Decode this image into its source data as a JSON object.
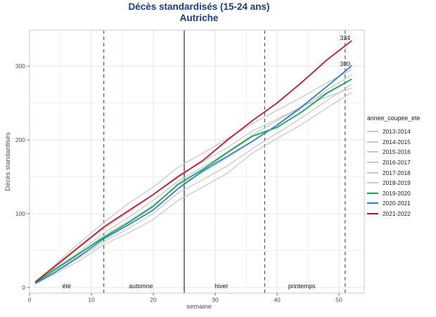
{
  "title": {
    "line1": "Décès standardisés (15-24 ans)",
    "line2": "Autriche",
    "color": "#123d8c"
  },
  "legend": {
    "title": "annee_coupee_ete",
    "position": "right"
  },
  "colors": {
    "title": "#123d8c",
    "gray_series": "#c9c9c9",
    "green_series": "#10a850",
    "blue_series": "#2b7fd9",
    "red_series": "#c4172c",
    "axis_text": "#4d4d4d",
    "grid_major": "#e4e4e4",
    "grid_minor": "#f1f1f1",
    "panel_border": "#c9c9c9",
    "divider_dashed": "#5a5a5a",
    "divider_solid": "#2b2b2b",
    "annotation_text": "#1a1a1a"
  },
  "chart_data": {
    "type": "line",
    "title": "Décès standardisés (15-24 ans) — Autriche",
    "xlabel": "semaine",
    "ylabel": "Décès standardisés",
    "xlim": [
      0,
      54
    ],
    "ylim": [
      -9,
      350
    ],
    "x_ticks": [
      0,
      10,
      20,
      30,
      40,
      50
    ],
    "y_ticks": [
      0,
      100,
      200,
      300
    ],
    "grid": "major+minor",
    "legend_position": "right",
    "x": [
      1,
      4,
      8,
      12,
      16,
      20,
      24,
      28,
      32,
      36,
      40,
      44,
      48,
      52
    ],
    "series": [
      {
        "name": "2013-2014",
        "color": "#c9c9c9",
        "width": 1.3,
        "values": [
          5,
          20,
          40,
          62,
          80,
          100,
          128,
          146,
          165,
          188,
          209,
          230,
          253,
          275
        ]
      },
      {
        "name": "2014-2015",
        "color": "#c9c9c9",
        "width": 1.3,
        "values": [
          6,
          22,
          45,
          70,
          90,
          112,
          138,
          156,
          176,
          198,
          220,
          243,
          267,
          288
        ]
      },
      {
        "name": "2015-2016",
        "color": "#c9c9c9",
        "width": 1.3,
        "values": [
          7,
          26,
          54,
          80,
          102,
          126,
          152,
          170,
          190,
          212,
          228,
          245,
          258,
          270
        ]
      },
      {
        "name": "2016-2017",
        "color": "#c9c9c9",
        "width": 1.3,
        "values": [
          8,
          30,
          60,
          88,
          114,
          136,
          163,
          182,
          202,
          222,
          240,
          258,
          277,
          295
        ]
      },
      {
        "name": "2017-2018",
        "color": "#c9c9c9",
        "width": 1.3,
        "values": [
          5,
          18,
          36,
          58,
          74,
          92,
          118,
          136,
          155,
          182,
          202,
          221,
          243,
          264
        ]
      },
      {
        "name": "2018-2019",
        "color": "#c9c9c9",
        "width": 1.3,
        "values": [
          6,
          24,
          48,
          74,
          95,
          118,
          144,
          163,
          184,
          207,
          226,
          245,
          264,
          282
        ]
      },
      {
        "name": "2019-2020",
        "color": "#10a850",
        "width": 1.8,
        "values": [
          7,
          24,
          46,
          68,
          88,
          110,
          140,
          160,
          183,
          205,
          217,
          238,
          263,
          282
        ]
      },
      {
        "name": "2020-2021",
        "color": "#2b7fd9",
        "width": 1.8,
        "values": [
          6,
          20,
          42,
          66,
          85,
          105,
          134,
          158,
          178,
          198,
          220,
          245,
          272,
          300
        ]
      },
      {
        "name": "2021-2022",
        "color": "#c4172c",
        "width": 1.8,
        "values": [
          8,
          28,
          55,
          82,
          104,
          126,
          150,
          172,
          200,
          226,
          250,
          278,
          308,
          334
        ]
      }
    ],
    "season_dividers": [
      {
        "week": 12,
        "style": "dashed"
      },
      {
        "week": 25,
        "style": "solid"
      },
      {
        "week": 38,
        "style": "dashed"
      },
      {
        "week": 51,
        "style": "dashed"
      }
    ],
    "season_labels": [
      {
        "label": "été",
        "week": 6
      },
      {
        "label": "automne",
        "week": 18
      },
      {
        "label": "hiver",
        "week": 31
      },
      {
        "label": "printemps",
        "week": 44
      }
    ],
    "annotations": [
      {
        "text": "334",
        "week": 51,
        "value": 338
      },
      {
        "text": "300",
        "week": 51,
        "value": 303
      }
    ]
  }
}
